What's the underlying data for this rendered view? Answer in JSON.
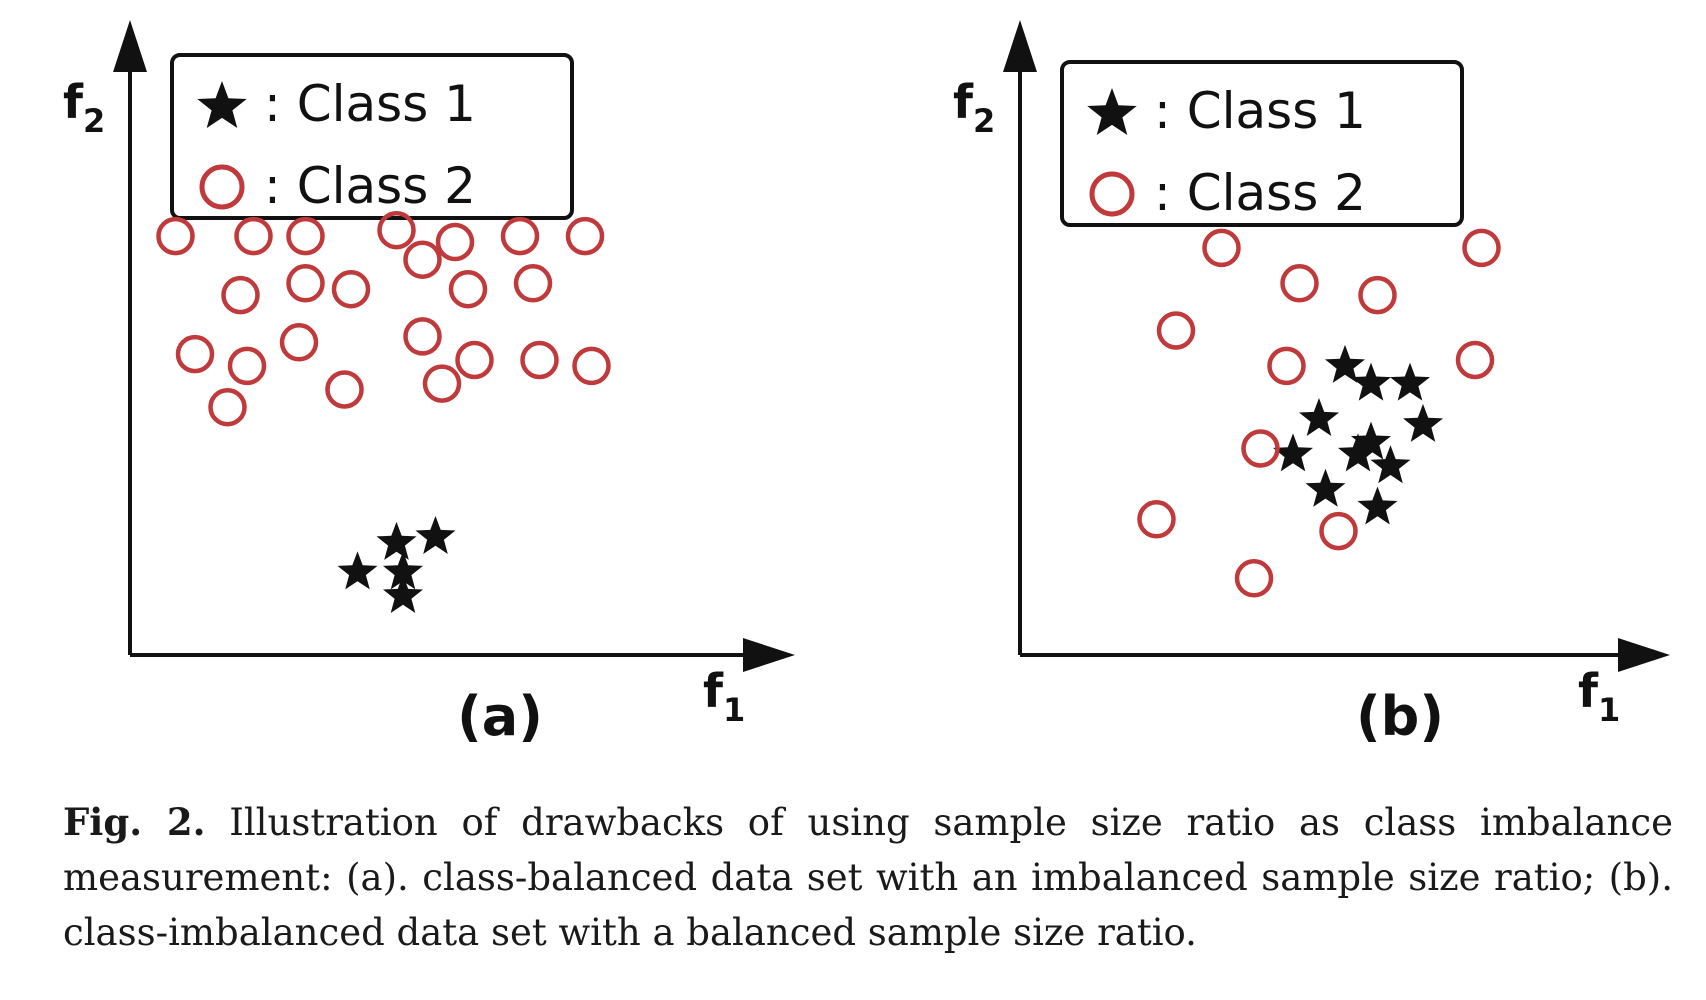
{
  "chart_data": [
    {
      "type": "scatter",
      "panel_label": "(a)",
      "xlabel": "f",
      "xlabel_sub": "1",
      "ylabel": "f",
      "ylabel_sub": "2",
      "legend_placement": "top-left",
      "xlim": [
        0,
        100
      ],
      "ylim": [
        0,
        100
      ],
      "grid": false,
      "series": [
        {
          "name": "Class 1",
          "marker": "star",
          "color": "#111111",
          "points": [
            [
              35,
              14
            ],
            [
              41,
              19
            ],
            [
              47,
              20
            ],
            [
              42,
              10
            ],
            [
              42,
              14
            ]
          ]
        },
        {
          "name": "Class 2",
          "marker": "circle-open",
          "color": "#c0393b",
          "points": [
            [
              7,
              71
            ],
            [
              19,
              71
            ],
            [
              27,
              71
            ],
            [
              41,
              72
            ],
            [
              50,
              70
            ],
            [
              60,
              71
            ],
            [
              70,
              71
            ],
            [
              45,
              67
            ],
            [
              17,
              61
            ],
            [
              27,
              63
            ],
            [
              34,
              62
            ],
            [
              52,
              62
            ],
            [
              62,
              63
            ],
            [
              10,
              51
            ],
            [
              18,
              49
            ],
            [
              26,
              53
            ],
            [
              33,
              45
            ],
            [
              48,
              46
            ],
            [
              53,
              50
            ],
            [
              63,
              50
            ],
            [
              71,
              49
            ],
            [
              15,
              42
            ],
            [
              45,
              54
            ]
          ]
        }
      ]
    },
    {
      "type": "scatter",
      "panel_label": "(b)",
      "xlabel": "f",
      "xlabel_sub": "1",
      "ylabel": "f",
      "ylabel_sub": "2",
      "legend_placement": "top-left",
      "xlim": [
        0,
        100
      ],
      "ylim": [
        0,
        100
      ],
      "grid": false,
      "series": [
        {
          "name": "Class 1",
          "marker": "star",
          "color": "#111111",
          "points": [
            [
              50,
              49
            ],
            [
              54,
              46
            ],
            [
              60,
              46
            ],
            [
              46,
              40
            ],
            [
              54,
              36
            ],
            [
              62,
              39
            ],
            [
              42,
              34
            ],
            [
              52,
              34
            ],
            [
              57,
              32
            ],
            [
              47,
              28
            ],
            [
              55,
              25
            ]
          ]
        },
        {
          "name": "Class 2",
          "marker": "circle-open",
          "color": "#c0393b",
          "points": [
            [
              31,
              69
            ],
            [
              71,
              69
            ],
            [
              43,
              63
            ],
            [
              55,
              61
            ],
            [
              24,
              55
            ],
            [
              41,
              49
            ],
            [
              70,
              50
            ],
            [
              37,
              35
            ],
            [
              21,
              23
            ],
            [
              49,
              21
            ],
            [
              36,
              13
            ]
          ]
        }
      ]
    }
  ],
  "caption": {
    "label": "Fig. 2.",
    "text": "Illustration of drawbacks of using sample size ratio as class imbalance measurement: (a). class-balanced data set with an imbalanced sample size ratio; (b). class-imbalanced data set with a balanced sample size ratio."
  }
}
